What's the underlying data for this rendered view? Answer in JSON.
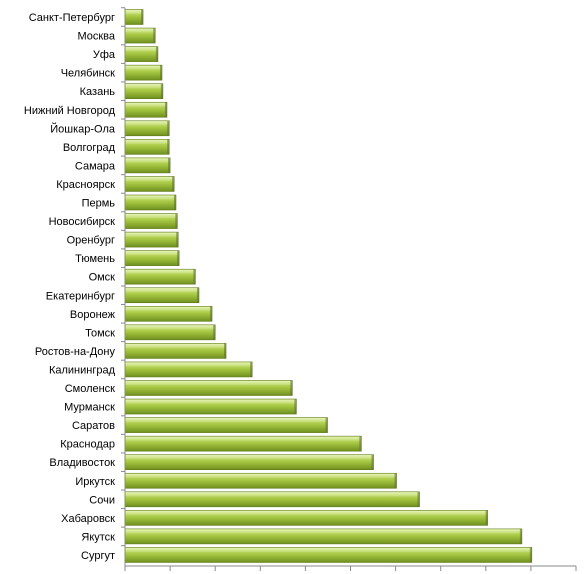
{
  "chart_data": {
    "type": "bar",
    "orientation": "horizontal",
    "title": "",
    "xlabel": "",
    "ylabel": "",
    "categories": [
      "Санкт-Петербург",
      "Москва",
      "Уфа",
      "Челябинск",
      "Казань",
      "Нижний Новгород",
      "Йошкар-Ола",
      "Волгоград",
      "Самара",
      "Красноярск",
      "Пермь",
      "Новосибирск",
      "Оренбург",
      "Тюмень",
      "Омск",
      "Екатеринбург",
      "Воронеж",
      "Томск",
      "Ростов-на-Дону",
      "Калининград",
      "Смоленск",
      "Мурманск",
      "Саратов",
      "Краснодар",
      "Владивосток",
      "Иркутск",
      "Сочи",
      "Хабаровск",
      "Якутск",
      "Сургут"
    ],
    "values": [
      0.4,
      0.67,
      0.73,
      0.82,
      0.84,
      0.93,
      0.98,
      0.98,
      1.0,
      1.09,
      1.13,
      1.16,
      1.18,
      1.2,
      1.56,
      1.64,
      1.93,
      2.0,
      2.24,
      2.82,
      3.71,
      3.8,
      4.49,
      5.24,
      5.51,
      6.02,
      6.53,
      8.04,
      8.8,
      9.02
    ],
    "xlim": [
      0,
      10
    ],
    "x_ticks_count": 10,
    "grid": false,
    "legend": "none",
    "bar_color": "#9bbb3c",
    "bar_highlight": "#cfe584",
    "bar_shadow": "#5e7a18"
  }
}
